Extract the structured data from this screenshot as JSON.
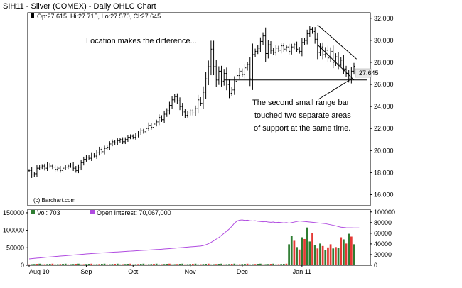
{
  "header": {
    "title": "SIH11 - Silver (COMEX) - Daily OHLC Chart"
  },
  "price_legend": "Op:27.615, Hi:27.715, Lo:27.570, Cl:27.645",
  "current_price_label": "27.645",
  "annotations": {
    "headline": "Location makes the difference...",
    "note_lines": [
      "The second small range bar",
      "touched two separate areas",
      "of support at the same time."
    ]
  },
  "watermark": "(c) Barchart.com",
  "volume_legend": {
    "volume": "Vol: 703",
    "open_interest": "Open Interest: 70,067,000"
  },
  "colors": {
    "up_volume": "#2e7d32",
    "down_volume": "#e53935",
    "open_interest": "#b04be0",
    "price_bar": "#000000",
    "current_price_box": "#e8e8e8"
  },
  "chart_data": [
    {
      "type": "ohlc",
      "title": "SIH11 - Silver (COMEX) - Daily OHLC Chart",
      "x": [
        "Aug 10",
        "Sep",
        "Oct",
        "Nov",
        "Dec",
        "Jan 11"
      ],
      "y_ticks": [
        "16.000",
        "18.000",
        "20.000",
        "22.000",
        "24.000",
        "26.000",
        "28.000",
        "30.000",
        "32.000"
      ],
      "ylim": [
        15,
        32.5
      ],
      "closes": [
        18.2,
        17.8,
        17.9,
        18.4,
        18.5,
        18.6,
        18.4,
        18.7,
        18.6,
        18.5,
        18.3,
        18.4,
        18.2,
        18.4,
        18.5,
        18.6,
        18.7,
        18.4,
        18.2,
        18.5,
        18.9,
        19.2,
        19.4,
        19.3,
        19.6,
        19.5,
        19.8,
        20.1,
        19.9,
        20.2,
        20.3,
        20.6,
        20.8,
        20.7,
        20.9,
        21.0,
        20.8,
        21.0,
        21.2,
        21.3,
        21.2,
        21.4,
        21.6,
        21.8,
        21.7,
        22.0,
        22.3,
        22.1,
        22.4,
        22.6,
        23.0,
        22.8,
        23.3,
        23.6,
        24.1,
        24.6,
        24.9,
        24.5,
        24.0,
        23.5,
        23.2,
        23.4,
        23.6,
        23.4,
        23.8,
        24.6,
        24.3,
        25.3,
        26.5,
        27.6,
        29.2,
        27.6,
        26.4,
        27.2,
        26.3,
        27.0,
        26.0,
        25.2,
        25.5,
        26.3,
        26.8,
        27.2,
        26.9,
        27.5,
        27.8,
        26.5,
        28.7,
        29.0,
        29.3,
        29.9,
        30.4,
        28.8,
        29.6,
        29.1,
        28.9,
        29.3,
        29.1,
        29.5,
        29.2,
        29.4,
        29.0,
        29.4,
        29.6,
        29.2,
        29.0,
        29.8,
        30.0,
        30.6,
        31.0,
        30.8,
        30.1,
        28.9,
        29.4,
        28.7,
        29.1,
        28.4,
        29.0,
        28.0,
        28.5,
        27.8,
        28.2,
        27.4,
        27.0,
        26.5,
        27.2,
        27.645
      ],
      "annotations": [
        "Location makes the difference...",
        "The second small range bar",
        "touched two separate areas",
        "of support at the same time."
      ],
      "support_level": 26.4,
      "channel": {
        "upper": [
          [
            111,
            31.4
          ],
          [
            126,
            28.3
          ]
        ],
        "lower": [
          [
            111,
            29.6
          ],
          [
            125,
            26.4
          ]
        ]
      }
    },
    {
      "type": "bar",
      "series": [
        {
          "name": "Vol: 703",
          "values": [
            10,
            10,
            10,
            10,
            10,
            10,
            10,
            10,
            10,
            10,
            10,
            10,
            10,
            10,
            10,
            10,
            10,
            10,
            10,
            10,
            10,
            10,
            10,
            10,
            10,
            10,
            10,
            10,
            10,
            10,
            10,
            10,
            10,
            10,
            10,
            10,
            10,
            10,
            10,
            10,
            10,
            10,
            10,
            10,
            10,
            10,
            10,
            10,
            10,
            10,
            10,
            10,
            10,
            10,
            10,
            10,
            10,
            10,
            10,
            10,
            10,
            10,
            10,
            10,
            10,
            10,
            10,
            10,
            10,
            10,
            10,
            10,
            10,
            10,
            10,
            10,
            10,
            10,
            10,
            10,
            10,
            10,
            10,
            10,
            10,
            10,
            10,
            10,
            10,
            10,
            10,
            10,
            10,
            10,
            10,
            10,
            10,
            10,
            10,
            10,
            10,
            10,
            10,
            10,
            10,
            10,
            10,
            10,
            10,
            10,
            10,
            10,
            10,
            10,
            10,
            10,
            10,
            10,
            10,
            10,
            10,
            10,
            10,
            10,
            10,
            10,
            10,
            10
          ]
        },
        {
          "name": "Open Interest: 70,067,000",
          "values": [
            12000,
            12500,
            13000,
            13400,
            13800,
            14300,
            14800,
            15200,
            15600,
            16000,
            16400,
            16800,
            17200,
            17600,
            18000,
            18400,
            18800,
            19200,
            19600,
            20000,
            20400,
            20800,
            21200,
            21600,
            22000,
            22300,
            22600,
            22900,
            23200,
            23500,
            23800,
            24100,
            24400,
            24700,
            25000,
            25300,
            25600,
            25900,
            26200,
            26500,
            26800,
            27100,
            27400,
            27700,
            28000,
            28300,
            28600,
            28900,
            29200,
            29500,
            29800,
            30100,
            30500,
            30900,
            31300,
            31700,
            32100,
            32500,
            32900,
            33300,
            33700,
            34100,
            34500,
            34900,
            35300,
            35700,
            36100,
            37000,
            38500,
            40500,
            43000,
            46000,
            49000,
            52000,
            56000,
            60000,
            64000,
            68000,
            73000,
            79000,
            83000,
            84500,
            85000,
            84000,
            84500,
            83500,
            83000,
            83500,
            82500,
            82000,
            81500,
            82000,
            81000,
            80500,
            81000,
            80000,
            80500,
            80000,
            79500,
            80000,
            79000,
            80000,
            81000,
            82000,
            83000,
            82500,
            82000,
            81500,
            81000,
            80500,
            80000,
            79500,
            79000,
            78500,
            78000,
            77000,
            76000,
            75000,
            74000,
            72500,
            71500,
            71000,
            70500,
            70300,
            70200,
            70067,
            70067,
            70067
          ]
        }
      ],
      "y_ticks_left": [
        "0",
        "50000",
        "100000",
        "150000"
      ],
      "y_ticks_right": [
        "0",
        "20000",
        "40000",
        "60000",
        "80000",
        "100000"
      ],
      "x_ticks": [
        "Aug 10",
        "Sep",
        "Oct",
        "Nov",
        "Dec",
        "Jan 11"
      ],
      "volume_bars_dec_jan": [
        {
          "i": 100,
          "v": 60000,
          "c": "up"
        },
        {
          "i": 101,
          "v": 85000,
          "c": "up"
        },
        {
          "i": 102,
          "v": 70000,
          "c": "down"
        },
        {
          "i": 103,
          "v": 52000,
          "c": "up"
        },
        {
          "i": 104,
          "v": 45000,
          "c": "down"
        },
        {
          "i": 105,
          "v": 80000,
          "c": "up"
        },
        {
          "i": 106,
          "v": 75000,
          "c": "down"
        },
        {
          "i": 107,
          "v": 108000,
          "c": "up"
        },
        {
          "i": 108,
          "v": 68000,
          "c": "up"
        },
        {
          "i": 109,
          "v": 92000,
          "c": "down"
        },
        {
          "i": 110,
          "v": 58000,
          "c": "up"
        },
        {
          "i": 111,
          "v": 48000,
          "c": "down"
        },
        {
          "i": 112,
          "v": 62000,
          "c": "up"
        },
        {
          "i": 113,
          "v": 55000,
          "c": "down"
        },
        {
          "i": 114,
          "v": 44000,
          "c": "up"
        },
        {
          "i": 115,
          "v": 51000,
          "c": "down"
        },
        {
          "i": 116,
          "v": 60000,
          "c": "down"
        },
        {
          "i": 117,
          "v": 48000,
          "c": "up"
        },
        {
          "i": 118,
          "v": 52000,
          "c": "down"
        },
        {
          "i": 119,
          "v": 50000,
          "c": "up"
        },
        {
          "i": 120,
          "v": 80000,
          "c": "down"
        },
        {
          "i": 121,
          "v": 74000,
          "c": "up"
        },
        {
          "i": 122,
          "v": 62000,
          "c": "down"
        },
        {
          "i": 123,
          "v": 90000,
          "c": "up"
        },
        {
          "i": 124,
          "v": 82000,
          "c": "down"
        },
        {
          "i": 125,
          "v": 60000,
          "c": "up"
        },
        {
          "i": 126,
          "v": 48000,
          "c": "down"
        },
        {
          "i": 127,
          "v": 40000,
          "c": "up"
        }
      ]
    }
  ]
}
